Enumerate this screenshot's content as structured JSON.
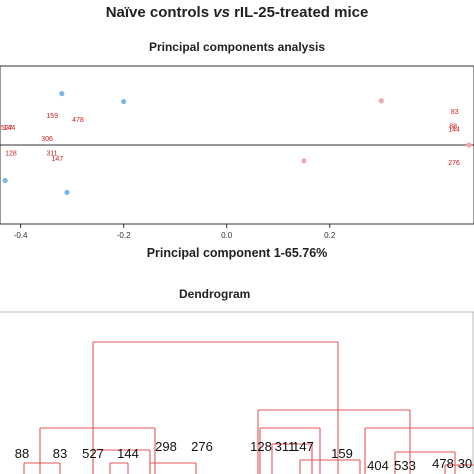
{
  "figure_title_prefix": "Naïve controls ",
  "figure_title_vs": "vs",
  "figure_title_suffix": " rIL-25-treated mice",
  "chart_data": [
    {
      "type": "scatter",
      "title": "Principal components analysis",
      "xlabel": "Principal component 1-65.76%",
      "xlim": [
        -0.44,
        0.48
      ],
      "ylim": [
        -1.0,
        1.0
      ],
      "xticks": [
        "-0.4",
        "-0.2",
        "0.0",
        "0.2"
      ],
      "xtick_values": [
        -0.4,
        -0.2,
        0.0,
        0.2
      ],
      "colors": {
        "naive": "#7ab8ea",
        "treated": "#f2a8a8",
        "label": "#cc2222"
      },
      "series": [
        {
          "points": [
            {
              "x": -0.32,
              "y": 0.65
            },
            {
              "x": -0.2,
              "y": 0.55
            },
            {
              "x": -0.43,
              "y": -0.45
            },
            {
              "x": -0.31,
              "y": -0.6
            }
          ]
        },
        {
          "points": [
            {
              "x": 0.3,
              "y": 0.56
            },
            {
              "x": 0.15,
              "y": -0.2
            },
            {
              "x": 0.47,
              "y": 0.0
            }
          ]
        }
      ],
      "point_labels": [
        {
          "text": "159",
          "x": -0.35,
          "y": 0.34
        },
        {
          "text": "478",
          "x": -0.3,
          "y": 0.29
        },
        {
          "text": "527",
          "x": -0.438,
          "y": 0.19
        },
        {
          "text": "144",
          "x": -0.433,
          "y": 0.19
        },
        {
          "text": "306",
          "x": -0.36,
          "y": 0.05
        },
        {
          "text": "128",
          "x": -0.43,
          "y": -0.13
        },
        {
          "text": "311",
          "x": -0.35,
          "y": -0.13
        },
        {
          "text": "147",
          "x": -0.34,
          "y": -0.2
        },
        {
          "text": "83",
          "x": 0.435,
          "y": 0.39
        },
        {
          "text": "88",
          "x": 0.432,
          "y": 0.21
        },
        {
          "text": "144",
          "x": 0.43,
          "y": 0.17
        },
        {
          "text": "276",
          "x": 0.43,
          "y": -0.25
        }
      ]
    },
    {
      "type": "dendrogram",
      "title": "Dendrogram",
      "leaf_labels": [
        "88",
        "83",
        "527",
        "144",
        "298",
        "276",
        "128",
        "311",
        "147",
        "159",
        "404",
        "533",
        "478",
        "30"
      ],
      "line_color": "#e05a5a"
    }
  ]
}
